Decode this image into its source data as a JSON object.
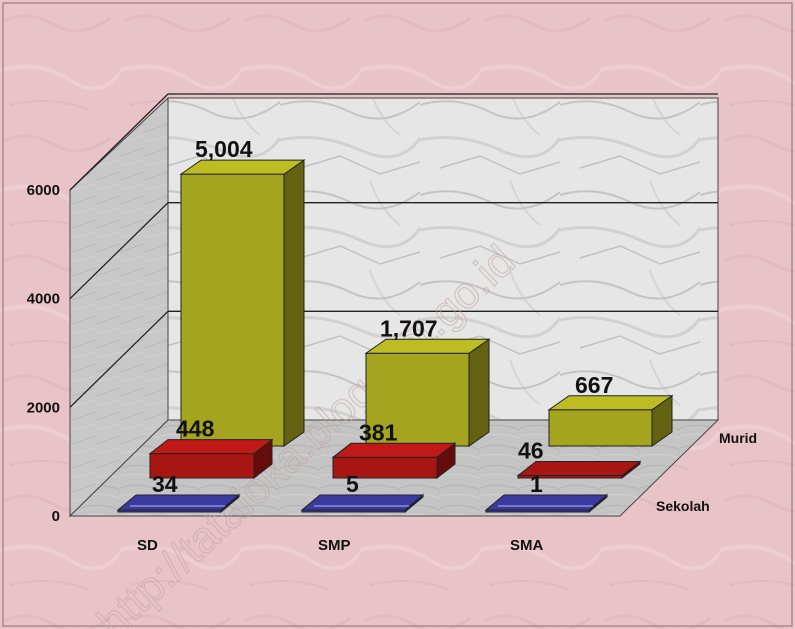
{
  "chart_data": {
    "type": "bar",
    "categories": [
      "SD",
      "SMP",
      "SMA"
    ],
    "series": [
      {
        "name": "Murid",
        "values": [
          5004,
          1707,
          667
        ],
        "labels": [
          "5,004",
          "1,707",
          "667"
        ]
      },
      {
        "name": "Sekolah",
        "values": [
          448,
          381,
          46
        ],
        "labels": [
          "448",
          "381",
          "46"
        ]
      },
      {
        "name": "",
        "values": [
          34,
          5,
          1
        ],
        "labels": [
          "34",
          "5",
          "1"
        ]
      }
    ],
    "yticks": [
      "0",
      "2000",
      "4000",
      "6000"
    ],
    "ylim": [
      0,
      6000
    ],
    "grid": true,
    "legend": "right",
    "watermark": "http://tataloka.blogspot.go.id",
    "colors": {
      "background": "#e8c4c8",
      "murid": "#a4a41e",
      "sekolah": "#a81614",
      "front": "#3a3aa0",
      "floor": "#c6c6c6",
      "wall": "#dcdcdc"
    }
  }
}
